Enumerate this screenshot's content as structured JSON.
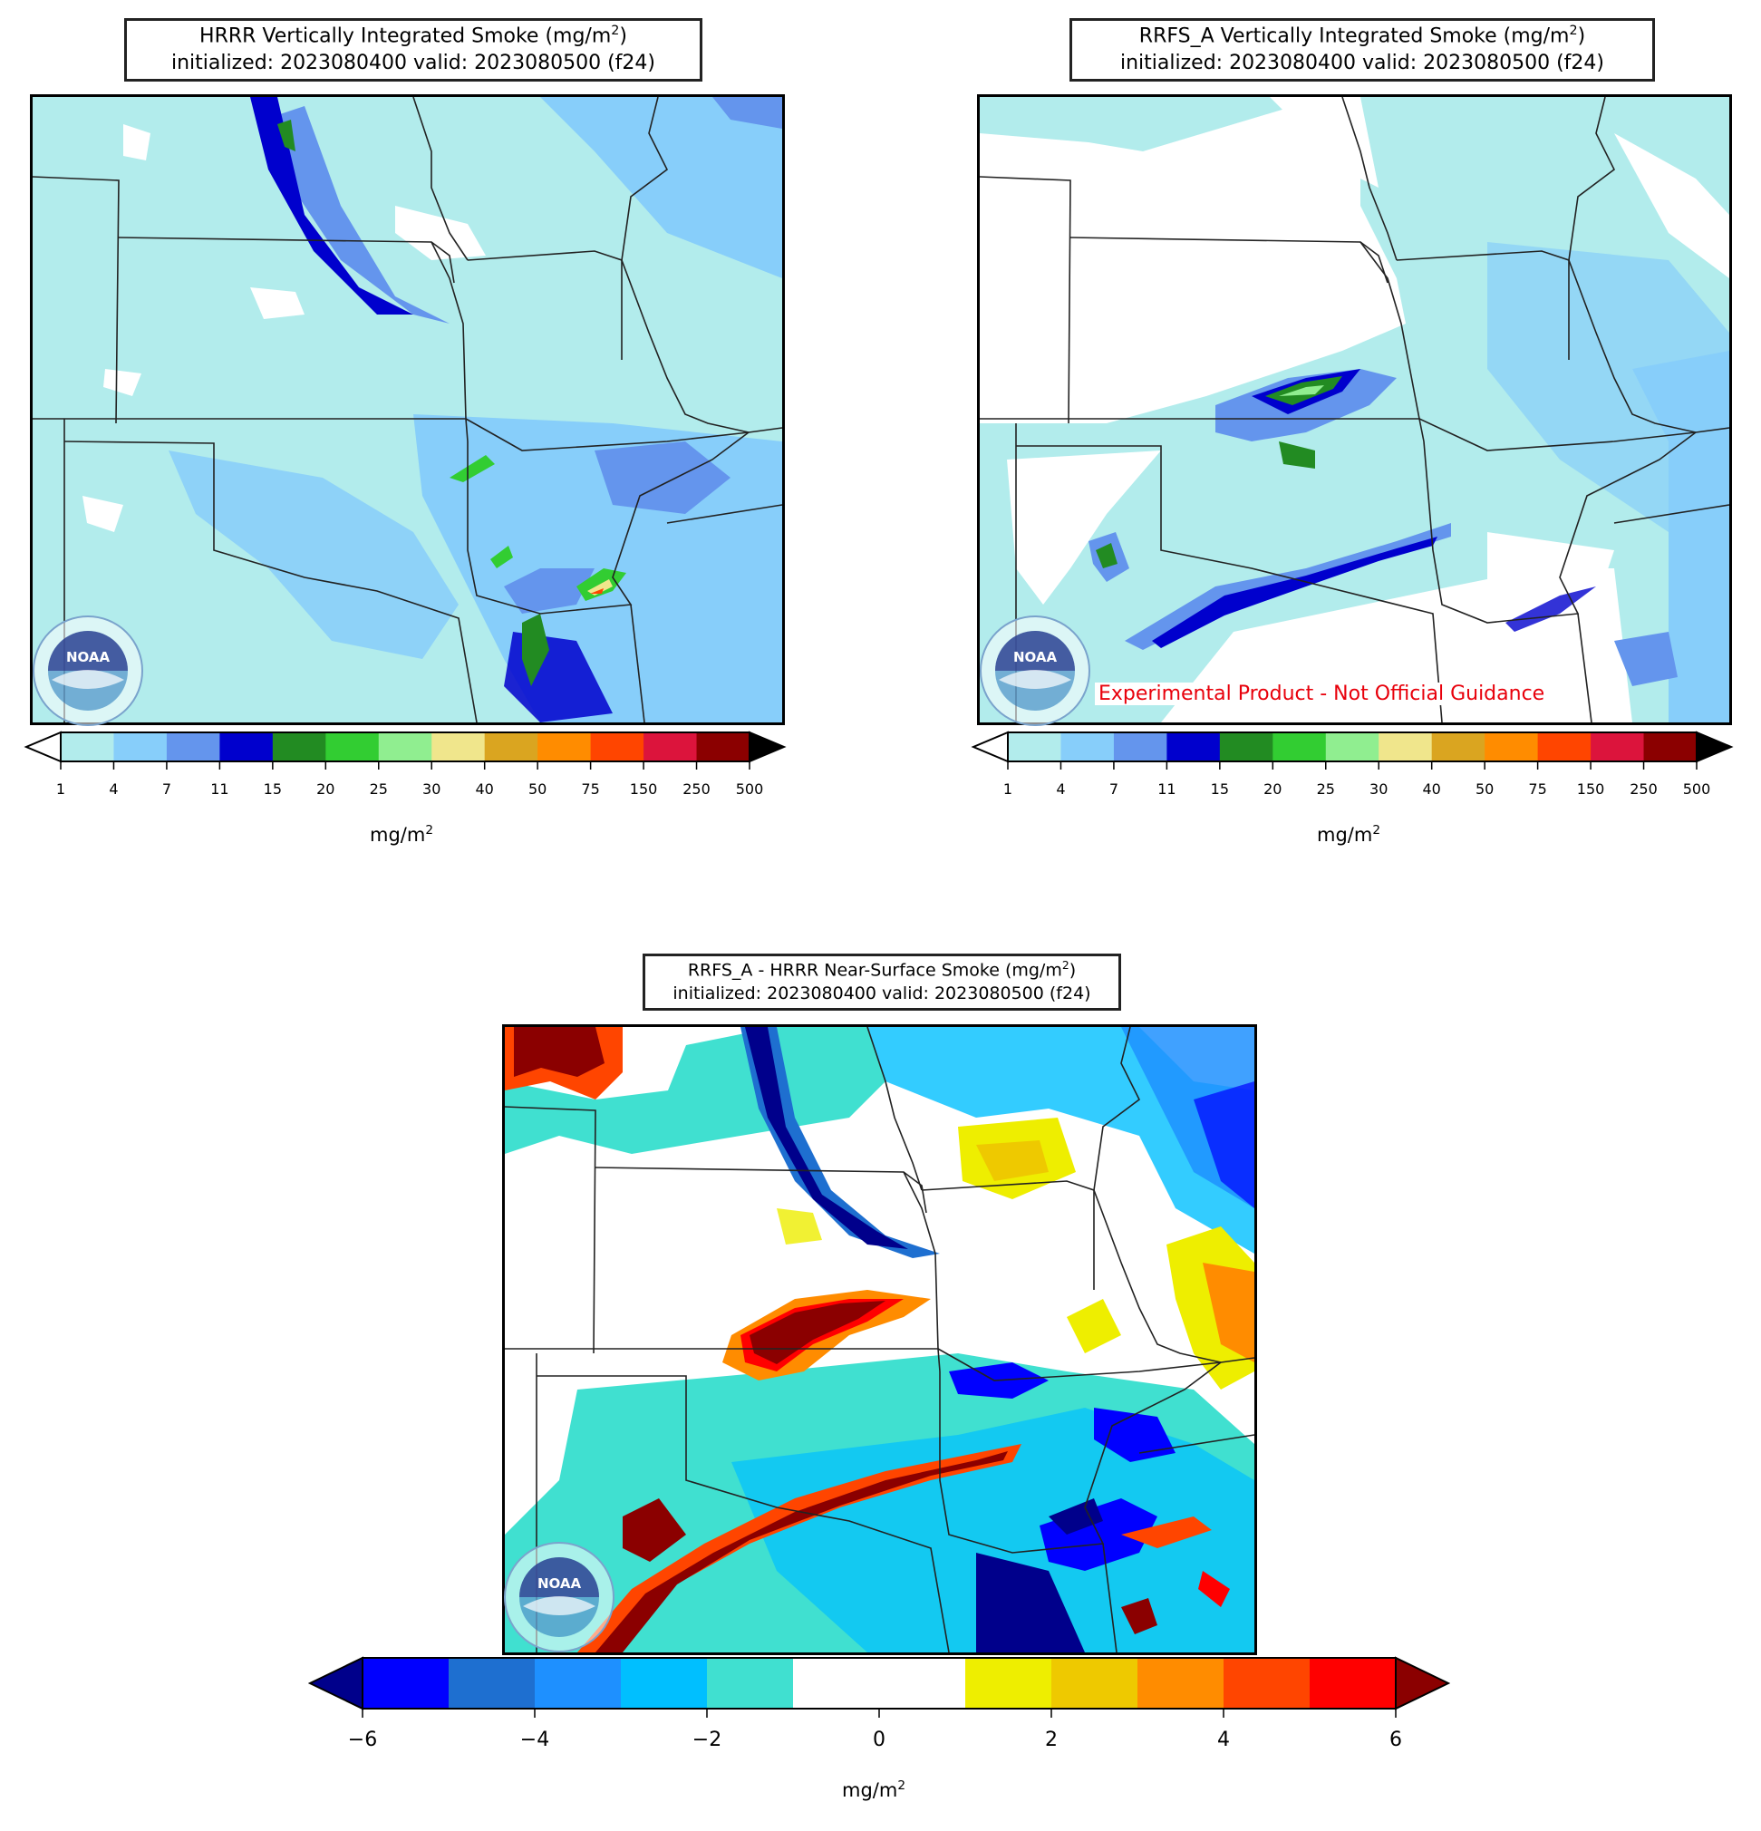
{
  "panels": {
    "hrrr": {
      "title_main": "HRRR Vertically Integrated Smoke (mg/m",
      "title_sup": "2",
      "title_end": ")",
      "subtitle": "initialized: 2023080400 valid: 2023080500 (f24)",
      "units_main": "mg/m",
      "units_sup": "2"
    },
    "rrfs": {
      "title_main": "RRFS_A Vertically Integrated Smoke (mg/m",
      "title_sup": "2",
      "title_end": ")",
      "subtitle": "initialized: 2023080400 valid: 2023080500 (f24)",
      "units_main": "mg/m",
      "units_sup": "2",
      "disclaimer": "Experimental Product - Not Official Guidance"
    },
    "diff": {
      "title_main": "RRFS_A - HRRR Near-Surface Smoke (mg/m",
      "title_sup": "2",
      "title_end": ")",
      "subtitle": "initialized: 2023080400 valid: 2023080500 (f24)",
      "units_main": "mg/m",
      "units_sup": "2"
    }
  },
  "logo_text": "NOAA",
  "smoke_colorbar": {
    "ticks": [
      "1",
      "4",
      "7",
      "11",
      "15",
      "20",
      "25",
      "30",
      "40",
      "50",
      "75",
      "150",
      "250",
      "500"
    ],
    "colors": [
      "#b2ecec",
      "#87cefa",
      "#6495ed",
      "#0000cd",
      "#228b22",
      "#32cd32",
      "#90ee90",
      "#f0e68c",
      "#daa520",
      "#ff8c00",
      "#ff4500",
      "#dc143c",
      "#8b0000"
    ],
    "under_color": "#ffffff",
    "over_color": "#000000"
  },
  "diff_colorbar": {
    "ticks": [
      "−6",
      "−4",
      "−2",
      "0",
      "2",
      "4",
      "6"
    ],
    "colors": [
      "#0000ff",
      "#1e6fd0",
      "#1e90ff",
      "#00bfff",
      "#40e0d0",
      "#ffffff",
      "#ffffff",
      "#eeee00",
      "#eec900",
      "#ff8c00",
      "#ff4500",
      "#ff0000"
    ],
    "under_color": "#00008b",
    "over_color": "#8b0000"
  }
}
